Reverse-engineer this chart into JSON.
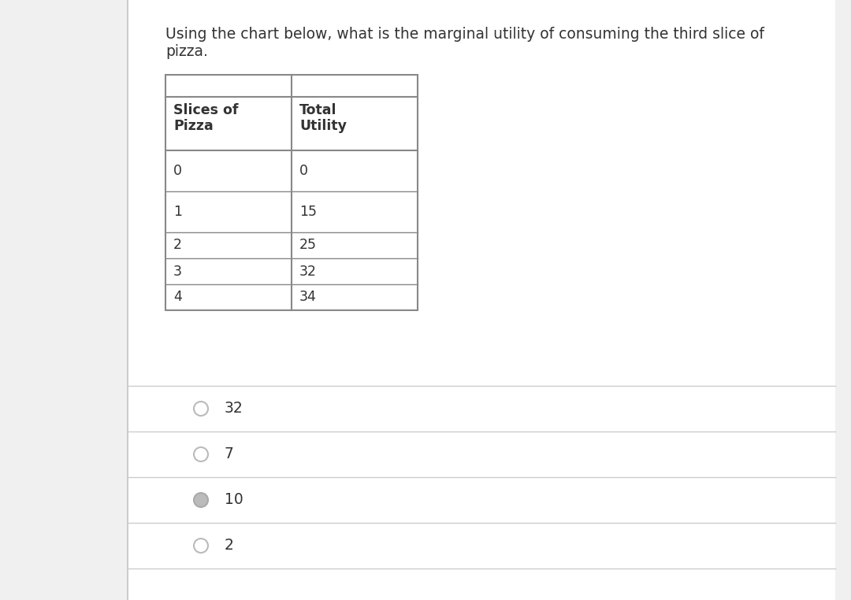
{
  "question_line1": "Using the chart below, what is the marginal utility of consuming the third slice of",
  "question_line2": "pizza.",
  "table_col1_header_line1": "Slices of",
  "table_col1_header_line2": "Pizza",
  "table_col2_header_line1": "Total",
  "table_col2_header_line2": "Utility",
  "table_data": [
    [
      "0",
      "0"
    ],
    [
      "1",
      "15"
    ],
    [
      "2",
      "25"
    ],
    [
      "3",
      "32"
    ],
    [
      "4",
      "34"
    ]
  ],
  "options": [
    {
      "label": "32",
      "selected": false
    },
    {
      "label": "7",
      "selected": false
    },
    {
      "label": "10",
      "selected": true
    },
    {
      "label": "2",
      "selected": false
    }
  ],
  "page_bg": "#f0f0f0",
  "card_bg": "#ffffff",
  "card_border": "#cccccc",
  "text_color": "#333333",
  "table_line_color": "#888888",
  "separator_color": "#cccccc",
  "radio_border_unselected": "#bbbbbb",
  "radio_fill_unselected": "#ffffff",
  "radio_border_selected": "#aaaaaa",
  "radio_fill_selected": "#bbbbbb"
}
